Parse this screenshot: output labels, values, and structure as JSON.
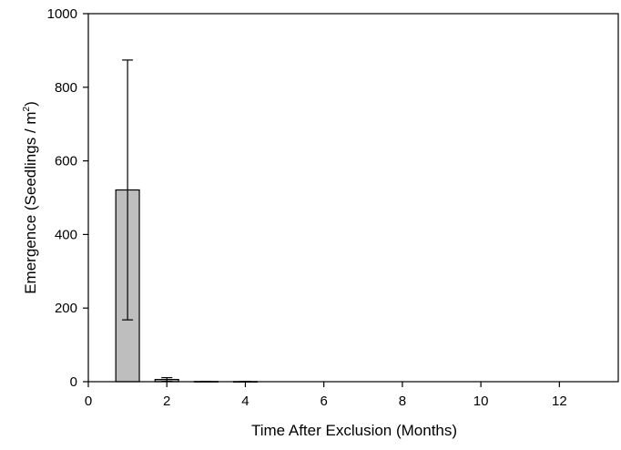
{
  "chart_data": {
    "type": "bar",
    "xlabel": "Time After Exclusion (Months)",
    "ylabel": {
      "main": "Emergence (Seedlings / m",
      "superscript": "2",
      "close": ")"
    },
    "xlim": [
      0,
      13.5
    ],
    "ylim": [
      0,
      1000
    ],
    "xticks": [
      0,
      2,
      4,
      6,
      8,
      10,
      12
    ],
    "yticks": [
      0,
      200,
      400,
      600,
      800,
      1000
    ],
    "grid": false,
    "series": [
      {
        "x": [
          1,
          2,
          3,
          4
        ],
        "values": [
          521,
          6,
          0.5,
          0.3
        ],
        "error_upper": [
          874,
          11,
          1,
          0.8
        ],
        "error_lower": [
          168,
          1,
          0,
          0
        ]
      }
    ],
    "bar_width_data": 0.6,
    "colors": {
      "bar_fill": "#bebebe",
      "stroke": "#000000"
    }
  }
}
